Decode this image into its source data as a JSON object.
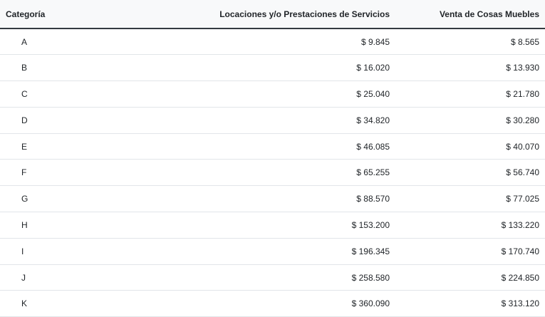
{
  "table": {
    "headers": {
      "category": "Categoría",
      "services": "Locaciones y/o Prestaciones de Servicios",
      "goods": "Venta de Cosas Muebles"
    },
    "rows": [
      {
        "category": "A",
        "services": "$ 9.845",
        "goods": "$ 8.565"
      },
      {
        "category": "B",
        "services": "$ 16.020",
        "goods": "$ 13.930"
      },
      {
        "category": "C",
        "services": "$ 25.040",
        "goods": "$ 21.780"
      },
      {
        "category": "D",
        "services": "$ 34.820",
        "goods": "$ 30.280"
      },
      {
        "category": "E",
        "services": "$ 46.085",
        "goods": "$ 40.070"
      },
      {
        "category": "F",
        "services": "$ 65.255",
        "goods": "$ 56.740"
      },
      {
        "category": "G",
        "services": "$ 88.570",
        "goods": "$ 77.025"
      },
      {
        "category": "H",
        "services": "$ 153.200",
        "goods": "$ 133.220"
      },
      {
        "category": "I",
        "services": "$ 196.345",
        "goods": "$ 170.740"
      },
      {
        "category": "J",
        "services": "$ 258.580",
        "goods": "$ 224.850"
      },
      {
        "category": "K",
        "services": "$ 360.090",
        "goods": "$ 313.120"
      }
    ]
  }
}
